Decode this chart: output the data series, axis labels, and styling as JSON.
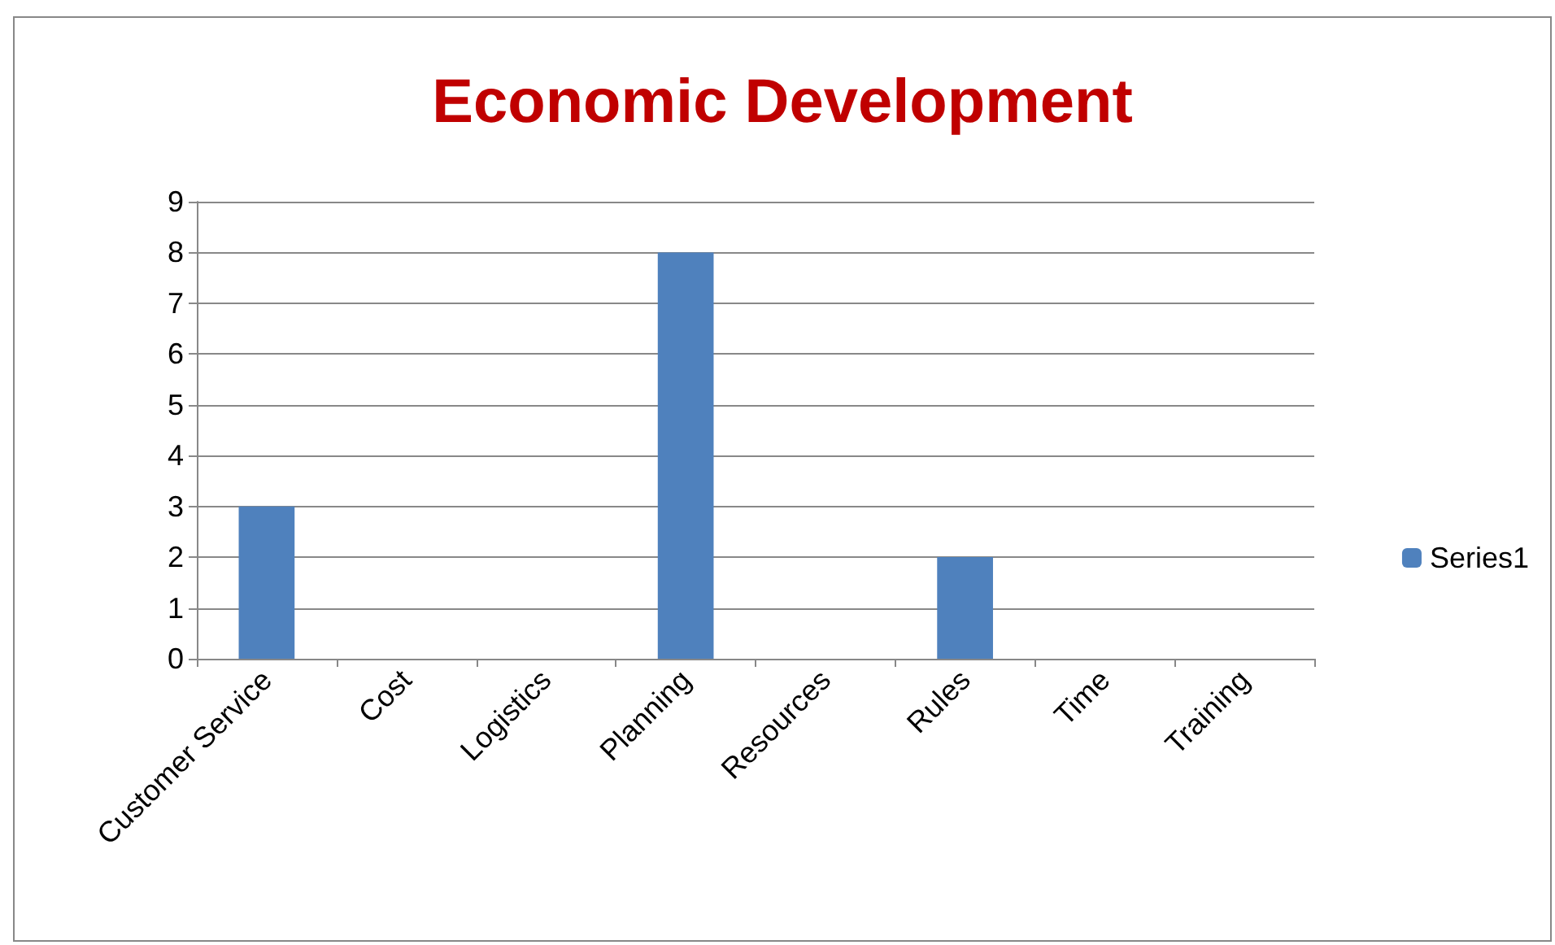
{
  "chart_data": {
    "type": "bar",
    "title": "Economic Development",
    "categories": [
      "Customer Service",
      "Cost",
      "Logistics",
      "Planning",
      "Resources",
      "Rules",
      "Time",
      "Training"
    ],
    "series": [
      {
        "name": "Series1",
        "color": "#4f81bd",
        "values": [
          3,
          0,
          0,
          8,
          0,
          2,
          0,
          0
        ]
      }
    ],
    "ylim": [
      0,
      9
    ],
    "yticks": [
      0,
      1,
      2,
      3,
      4,
      5,
      6,
      7,
      8,
      9
    ],
    "grid": "y",
    "legend": "right"
  }
}
